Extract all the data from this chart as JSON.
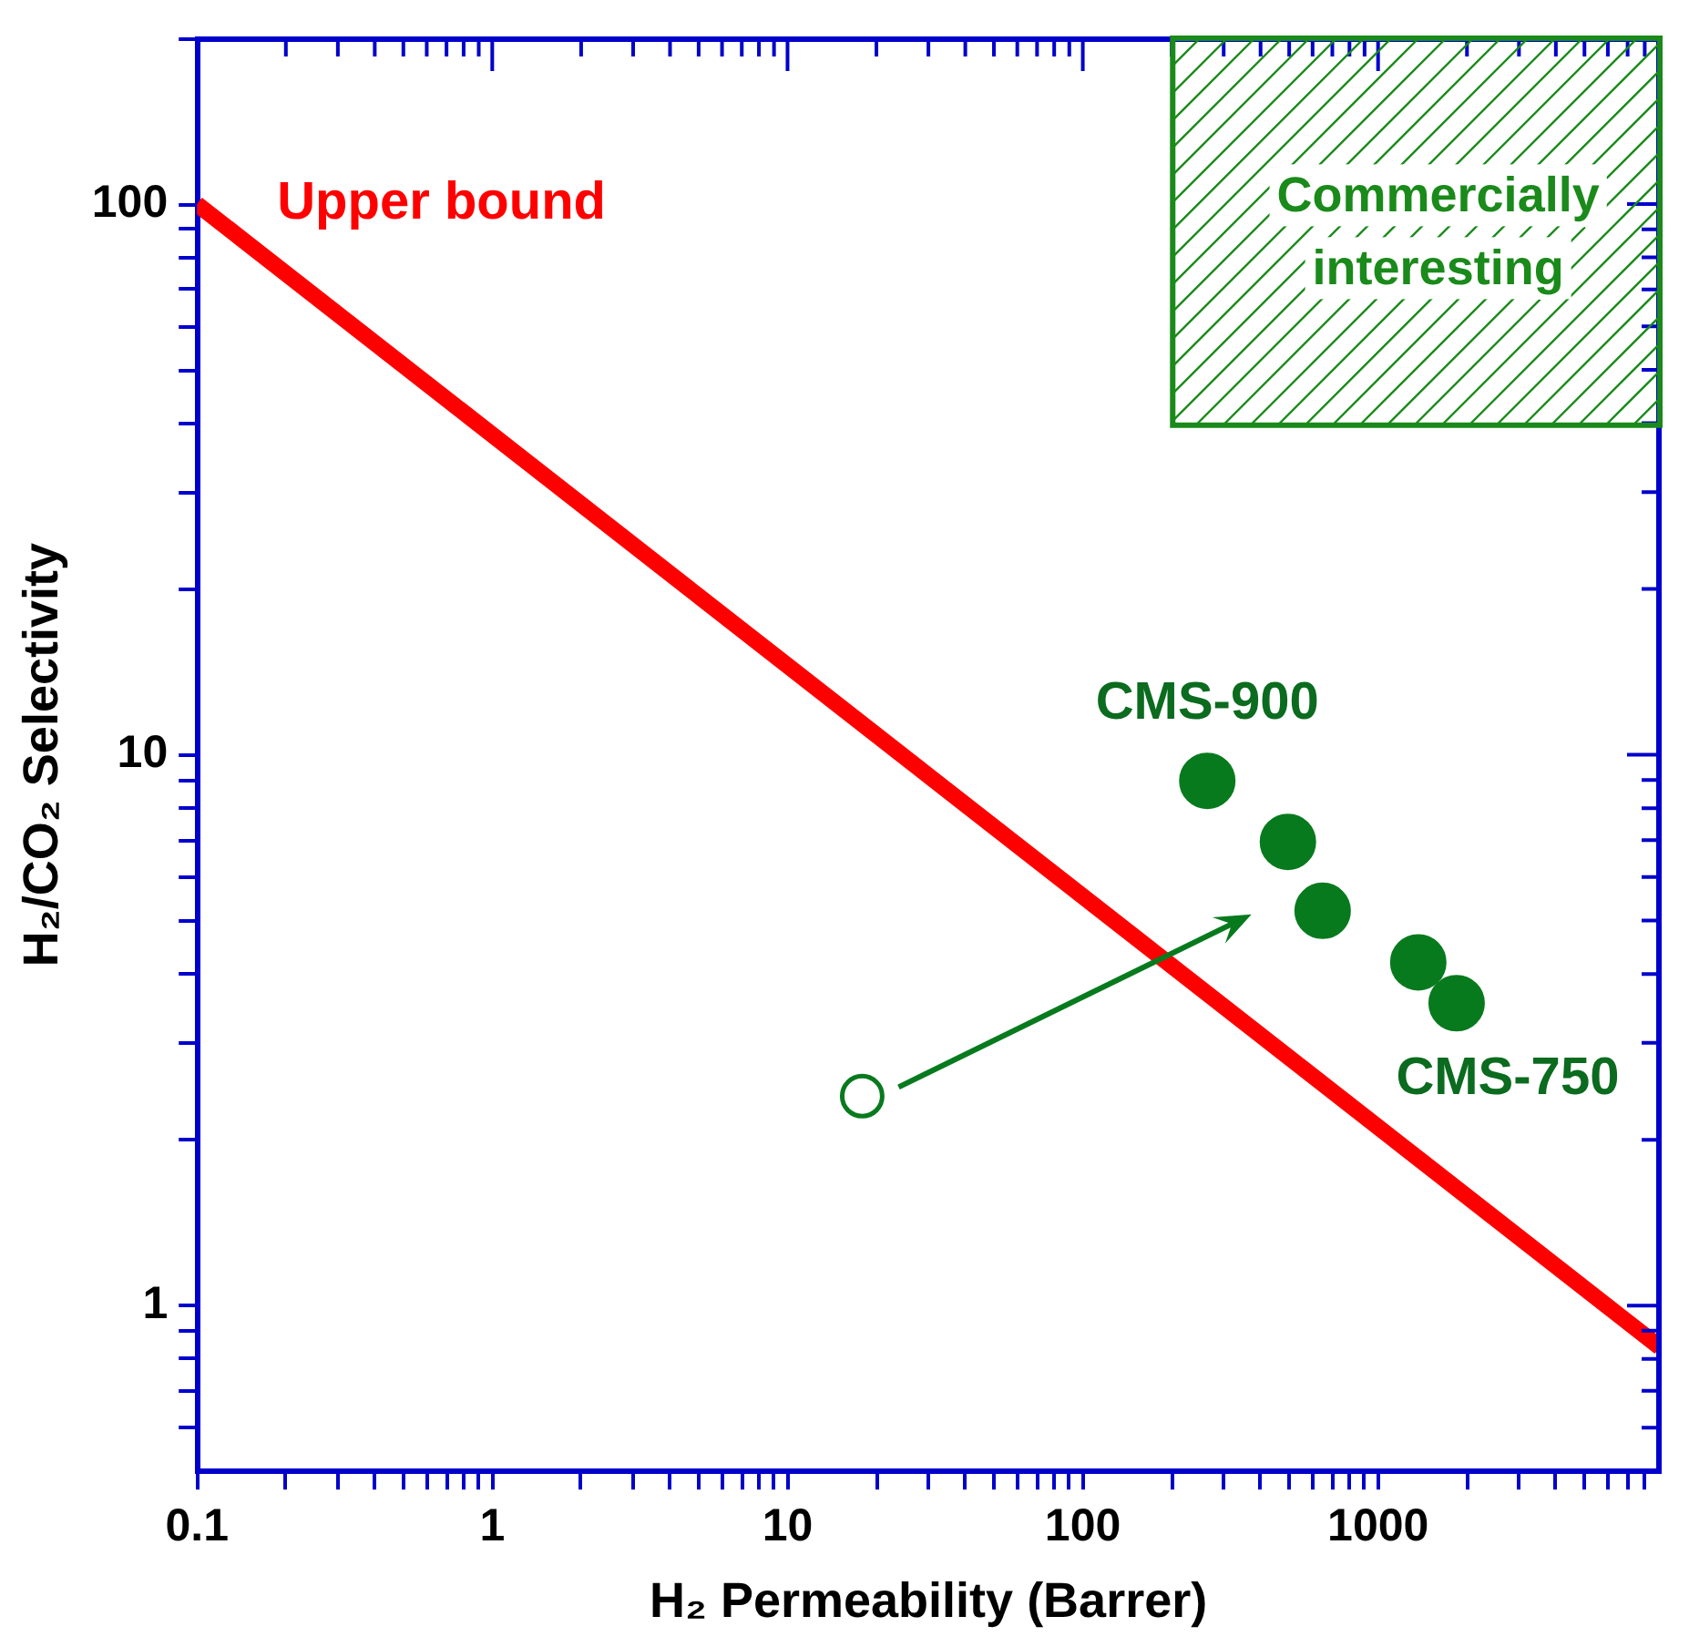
{
  "chart_data": {
    "type": "scatter",
    "xlabel": "H₂ Permeability (Barrer)",
    "ylabel": "H₂/CO₂ Selectivity",
    "log": "xy",
    "grid": false,
    "legend": false,
    "marker": "circle",
    "xlim": [
      0.1,
      9000
    ],
    "ylim": [
      0.5,
      200
    ],
    "xticks": [
      0.1,
      {
        "value": 0.2,
        "label": null
      },
      {
        "value": 0.3,
        "label": null
      },
      {
        "value": 0.4,
        "label": null
      },
      {
        "value": 0.5,
        "label": null
      },
      {
        "value": 0.6,
        "label": null
      },
      {
        "value": 0.7,
        "label": null
      },
      {
        "value": 0.8,
        "label": null
      },
      {
        "value": 0.9,
        "label": null
      },
      1,
      {
        "value": 2,
        "label": null
      },
      {
        "value": 3,
        "label": null
      },
      {
        "value": 4,
        "label": null
      },
      {
        "value": 5,
        "label": null
      },
      {
        "value": 6,
        "label": null
      },
      {
        "value": 7,
        "label": null
      },
      {
        "value": 8,
        "label": null
      },
      {
        "value": 9,
        "label": null
      },
      10,
      {
        "value": 20,
        "label": null
      },
      {
        "value": 30,
        "label": null
      },
      {
        "value": 40,
        "label": null
      },
      {
        "value": 50,
        "label": null
      },
      {
        "value": 60,
        "label": null
      },
      {
        "value": 70,
        "label": null
      },
      {
        "value": 80,
        "label": null
      },
      {
        "value": 90,
        "label": null
      },
      100,
      {
        "value": 200,
        "label": null
      },
      {
        "value": 300,
        "label": null
      },
      {
        "value": 400,
        "label": null
      },
      {
        "value": 500,
        "label": null
      },
      {
        "value": 600,
        "label": null
      },
      {
        "value": 700,
        "label": null
      },
      {
        "value": 800,
        "label": null
      },
      {
        "value": 900,
        "label": null
      },
      1000,
      {
        "value": 2000,
        "label": null
      },
      {
        "value": 3000,
        "label": null
      },
      {
        "value": 4000,
        "label": null
      },
      {
        "value": 5000,
        "label": null
      },
      {
        "value": 6000,
        "label": null
      },
      {
        "value": 7000,
        "label": null
      },
      {
        "value": 8000,
        "label": null
      }
    ],
    "yticks": [
      {
        "value": 0.6,
        "label": null
      },
      {
        "value": 0.7,
        "label": null
      },
      {
        "value": 0.8,
        "label": null
      },
      {
        "value": 0.9,
        "label": null
      },
      1,
      {
        "value": 2,
        "label": null
      },
      {
        "value": 3,
        "label": null
      },
      {
        "value": 4,
        "label": null
      },
      {
        "value": 5,
        "label": null
      },
      {
        "value": 6,
        "label": null
      },
      {
        "value": 7,
        "label": null
      },
      {
        "value": 8,
        "label": null
      },
      {
        "value": 9,
        "label": null
      },
      10,
      {
        "value": 20,
        "label": null
      },
      {
        "value": 30,
        "label": null
      },
      {
        "value": 40,
        "label": null
      },
      {
        "value": 50,
        "label": null
      },
      {
        "value": 60,
        "label": null
      },
      {
        "value": 70,
        "label": null
      },
      {
        "value": 80,
        "label": null
      },
      {
        "value": 90,
        "label": null
      },
      100,
      {
        "value": 200,
        "label": null
      }
    ],
    "series": [
      {
        "type": "line",
        "name": "Upper bound",
        "color": "#ff0000",
        "marker": "none",
        "x": [
          0.1,
          9000
        ],
        "values": [
          100,
          0.84
        ]
      },
      {
        "color": "#087a1e",
        "x": [
          264,
          495,
          649,
          1368,
          1845
        ],
        "values": [
          8.97,
          6.95,
          5.21,
          4.2,
          3.54
        ]
      },
      {
        "color": "#087a1e",
        "x": [
          17.9
        ],
        "values": [
          2.4
        ]
      }
    ],
    "annotations": [
      {
        "text": "CMS-900",
        "x": 264,
        "y": 8.97
      },
      {
        "text": "CMS-750",
        "x": 1845,
        "y": 3.54
      },
      "Commercially interesting"
    ]
  }
}
